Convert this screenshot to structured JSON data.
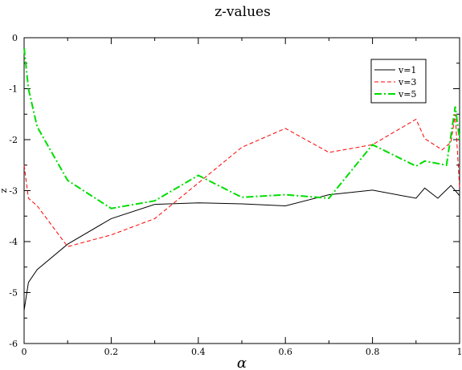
{
  "chart_data": {
    "type": "line",
    "title": "z-values",
    "xlabel": "α",
    "ylabel": "z",
    "xlim": [
      0,
      1
    ],
    "ylim": [
      -6,
      0
    ],
    "xticks": [
      0,
      0.2,
      0.4,
      0.6,
      0.8,
      1
    ],
    "xtick_labels": [
      "0",
      "0.2",
      "0.4",
      "0.6",
      "0.8",
      "1"
    ],
    "yticks": [
      0,
      -1,
      -2,
      -3,
      -4,
      -5,
      -6
    ],
    "ytick_labels": [
      "0",
      "-1",
      "-2",
      "-3",
      "-4",
      "-5",
      "-6"
    ],
    "grid": false,
    "legend_position": "top-right",
    "series": [
      {
        "name": "v=1",
        "color": "#000000",
        "dash": "solid",
        "x": [
          0,
          0.01,
          0.03,
          0.1,
          0.2,
          0.3,
          0.4,
          0.5,
          0.6,
          0.7,
          0.8,
          0.9,
          0.92,
          0.95,
          0.98,
          1.0
        ],
        "y": [
          -5.35,
          -4.8,
          -4.55,
          -4.05,
          -3.55,
          -3.27,
          -3.24,
          -3.26,
          -3.3,
          -3.08,
          -2.99,
          -3.15,
          -2.95,
          -3.15,
          -2.9,
          -3.1
        ]
      },
      {
        "name": "v=3",
        "color": "#ff0000",
        "dash": "dashed",
        "x": [
          0,
          0.01,
          0.03,
          0.1,
          0.2,
          0.3,
          0.4,
          0.5,
          0.6,
          0.7,
          0.8,
          0.9,
          0.92,
          0.96,
          0.98,
          0.99,
          1.0
        ],
        "y": [
          -2.5,
          -3.15,
          -3.3,
          -4.1,
          -3.87,
          -3.55,
          -2.85,
          -2.15,
          -1.78,
          -2.25,
          -2.1,
          -1.6,
          -1.98,
          -2.2,
          -2.05,
          -1.5,
          -2.95
        ]
      },
      {
        "name": "v=5",
        "color": "#00dd00",
        "dash": "dashdot",
        "x": [
          0,
          0.01,
          0.03,
          0.1,
          0.2,
          0.3,
          0.4,
          0.5,
          0.6,
          0.7,
          0.8,
          0.9,
          0.92,
          0.97,
          0.99,
          1.0
        ],
        "y": [
          -0.2,
          -1.0,
          -1.75,
          -2.8,
          -3.35,
          -3.2,
          -2.7,
          -3.13,
          -3.08,
          -3.15,
          -2.1,
          -2.52,
          -2.42,
          -2.5,
          -1.35,
          -2.0
        ]
      }
    ]
  }
}
